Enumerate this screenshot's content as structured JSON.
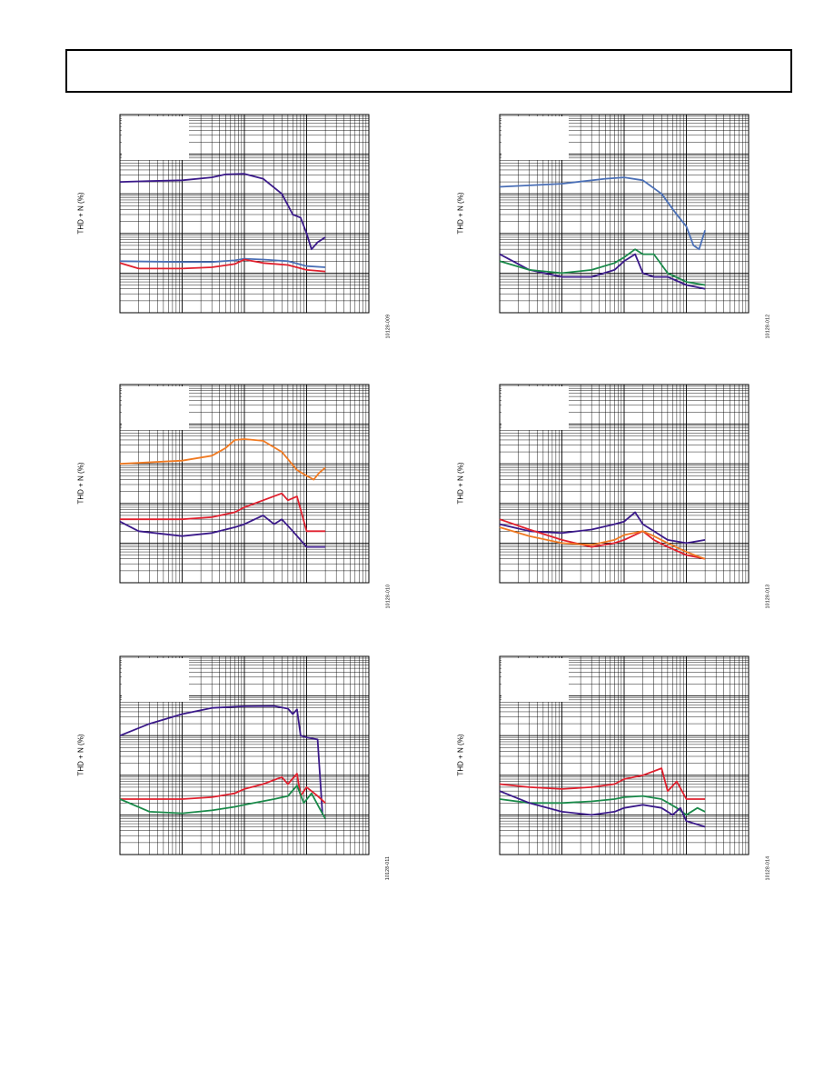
{
  "page": {
    "header_title": ""
  },
  "colors": {
    "purple": "#3b1a8a",
    "red": "#e0202e",
    "blue": "#4a6fb6",
    "green": "#1a8a4a",
    "orange": "#f07a22",
    "grid": "#000000"
  },
  "chart_data": [
    {
      "type": "line",
      "title": "",
      "xlabel": "",
      "ylabel": "THD + N (%)",
      "figure_code": "10128-009",
      "xscale": "log",
      "yscale": "log",
      "xlim": [
        0.001,
        10
      ],
      "ylim": [
        0.001,
        100
      ],
      "series": [
        {
          "color": "purple",
          "points": [
            [
              0.001,
              2
            ],
            [
              0.003,
              2.1
            ],
            [
              0.01,
              2.2
            ],
            [
              0.03,
              2.6
            ],
            [
              0.05,
              3.1
            ],
            [
              0.1,
              3.2
            ],
            [
              0.2,
              2.4
            ],
            [
              0.4,
              1.0
            ],
            [
              0.6,
              0.3
            ],
            [
              0.8,
              0.25
            ],
            [
              1.0,
              0.1
            ],
            [
              1.2,
              0.04
            ],
            [
              1.5,
              0.06
            ],
            [
              2.0,
              0.08
            ]
          ]
        },
        {
          "color": "blue",
          "points": [
            [
              0.001,
              0.02
            ],
            [
              0.01,
              0.019
            ],
            [
              0.03,
              0.019
            ],
            [
              0.07,
              0.021
            ],
            [
              0.1,
              0.023
            ],
            [
              0.2,
              0.022
            ],
            [
              0.5,
              0.02
            ],
            [
              1.0,
              0.015
            ],
            [
              2.0,
              0.014
            ]
          ]
        },
        {
          "color": "red",
          "points": [
            [
              0.001,
              0.018
            ],
            [
              0.002,
              0.013
            ],
            [
              0.01,
              0.013
            ],
            [
              0.03,
              0.014
            ],
            [
              0.07,
              0.017
            ],
            [
              0.1,
              0.022
            ],
            [
              0.2,
              0.018
            ],
            [
              0.5,
              0.016
            ],
            [
              1.0,
              0.012
            ],
            [
              2.0,
              0.011
            ]
          ]
        }
      ]
    },
    {
      "type": "line",
      "title": "",
      "xlabel": "",
      "ylabel": "THD + N (%)",
      "figure_code": "10128-012",
      "xscale": "log",
      "yscale": "log",
      "xlim": [
        0.001,
        10
      ],
      "ylim": [
        0.001,
        100
      ],
      "series": [
        {
          "color": "blue",
          "points": [
            [
              0.001,
              1.5
            ],
            [
              0.01,
              1.8
            ],
            [
              0.05,
              2.4
            ],
            [
              0.1,
              2.6
            ],
            [
              0.2,
              2.2
            ],
            [
              0.4,
              1.0
            ],
            [
              0.7,
              0.3
            ],
            [
              1.0,
              0.15
            ],
            [
              1.3,
              0.05
            ],
            [
              1.6,
              0.04
            ],
            [
              2.0,
              0.12
            ]
          ]
        },
        {
          "color": "purple",
          "points": [
            [
              0.001,
              0.03
            ],
            [
              0.003,
              0.012
            ],
            [
              0.01,
              0.008
            ],
            [
              0.03,
              0.008
            ],
            [
              0.07,
              0.012
            ],
            [
              0.1,
              0.02
            ],
            [
              0.15,
              0.03
            ],
            [
              0.2,
              0.01
            ],
            [
              0.3,
              0.008
            ],
            [
              0.5,
              0.008
            ],
            [
              1.0,
              0.005
            ],
            [
              2.0,
              0.004
            ]
          ]
        },
        {
          "color": "green",
          "points": [
            [
              0.001,
              0.02
            ],
            [
              0.003,
              0.012
            ],
            [
              0.01,
              0.01
            ],
            [
              0.03,
              0.012
            ],
            [
              0.07,
              0.018
            ],
            [
              0.1,
              0.025
            ],
            [
              0.15,
              0.04
            ],
            [
              0.2,
              0.03
            ],
            [
              0.3,
              0.03
            ],
            [
              0.5,
              0.01
            ],
            [
              1.0,
              0.006
            ],
            [
              2.0,
              0.005
            ]
          ]
        }
      ]
    },
    {
      "type": "line",
      "title": "",
      "xlabel": "",
      "ylabel": "THD + N (%)",
      "figure_code": "10128-010",
      "xscale": "log",
      "yscale": "log",
      "xlim": [
        0.001,
        10
      ],
      "ylim": [
        0.001,
        100
      ],
      "series": [
        {
          "color": "orange",
          "points": [
            [
              0.001,
              1.0
            ],
            [
              0.01,
              1.2
            ],
            [
              0.03,
              1.6
            ],
            [
              0.05,
              2.5
            ],
            [
              0.07,
              4.0
            ],
            [
              0.1,
              4.2
            ],
            [
              0.2,
              3.8
            ],
            [
              0.4,
              2.0
            ],
            [
              0.7,
              0.7
            ],
            [
              1.0,
              0.5
            ],
            [
              1.3,
              0.4
            ],
            [
              1.6,
              0.6
            ],
            [
              2.0,
              0.8
            ]
          ]
        },
        {
          "color": "red",
          "points": [
            [
              0.001,
              0.04
            ],
            [
              0.01,
              0.04
            ],
            [
              0.03,
              0.045
            ],
            [
              0.07,
              0.06
            ],
            [
              0.1,
              0.08
            ],
            [
              0.2,
              0.12
            ],
            [
              0.4,
              0.18
            ],
            [
              0.5,
              0.12
            ],
            [
              0.7,
              0.15
            ],
            [
              1.0,
              0.02
            ],
            [
              2.0,
              0.02
            ]
          ]
        },
        {
          "color": "purple",
          "points": [
            [
              0.001,
              0.035
            ],
            [
              0.002,
              0.02
            ],
            [
              0.01,
              0.015
            ],
            [
              0.03,
              0.018
            ],
            [
              0.07,
              0.025
            ],
            [
              0.1,
              0.03
            ],
            [
              0.2,
              0.05
            ],
            [
              0.3,
              0.03
            ],
            [
              0.4,
              0.04
            ],
            [
              0.6,
              0.02
            ],
            [
              1.0,
              0.008
            ],
            [
              2.0,
              0.008
            ]
          ]
        }
      ]
    },
    {
      "type": "line",
      "title": "",
      "xlabel": "",
      "ylabel": "THD + N (%)",
      "figure_code": "10128-013",
      "xscale": "log",
      "yscale": "log",
      "xlim": [
        0.001,
        10
      ],
      "ylim": [
        0.001,
        100
      ],
      "series": [
        {
          "color": "purple",
          "points": [
            [
              0.001,
              0.03
            ],
            [
              0.003,
              0.02
            ],
            [
              0.01,
              0.018
            ],
            [
              0.03,
              0.022
            ],
            [
              0.07,
              0.03
            ],
            [
              0.1,
              0.035
            ],
            [
              0.15,
              0.06
            ],
            [
              0.2,
              0.03
            ],
            [
              0.3,
              0.02
            ],
            [
              0.5,
              0.012
            ],
            [
              1.0,
              0.01
            ],
            [
              2.0,
              0.012
            ]
          ]
        },
        {
          "color": "red",
          "points": [
            [
              0.001,
              0.04
            ],
            [
              0.003,
              0.022
            ],
            [
              0.01,
              0.012
            ],
            [
              0.03,
              0.008
            ],
            [
              0.07,
              0.01
            ],
            [
              0.1,
              0.012
            ],
            [
              0.2,
              0.02
            ],
            [
              0.3,
              0.012
            ],
            [
              0.5,
              0.008
            ],
            [
              1.0,
              0.005
            ],
            [
              2.0,
              0.004
            ]
          ]
        },
        {
          "color": "orange",
          "points": [
            [
              0.001,
              0.025
            ],
            [
              0.003,
              0.015
            ],
            [
              0.01,
              0.01
            ],
            [
              0.03,
              0.009
            ],
            [
              0.07,
              0.012
            ],
            [
              0.1,
              0.016
            ],
            [
              0.2,
              0.02
            ],
            [
              0.3,
              0.015
            ],
            [
              0.5,
              0.01
            ],
            [
              1.0,
              0.006
            ],
            [
              2.0,
              0.004
            ]
          ]
        }
      ]
    },
    {
      "type": "line",
      "title": "",
      "xlabel": "",
      "ylabel": "THD + N (%)",
      "figure_code": "10128-011",
      "xscale": "log",
      "yscale": "log",
      "xlim": [
        0.001,
        10
      ],
      "ylim": [
        0.001,
        100
      ],
      "series": [
        {
          "color": "purple",
          "points": [
            [
              0.001,
              1.0
            ],
            [
              0.003,
              2.0
            ],
            [
              0.01,
              3.5
            ],
            [
              0.03,
              5.0
            ],
            [
              0.1,
              5.5
            ],
            [
              0.3,
              5.6
            ],
            [
              0.5,
              4.8
            ],
            [
              0.6,
              3.5
            ],
            [
              0.7,
              4.6
            ],
            [
              0.8,
              1.0
            ],
            [
              1.0,
              0.9
            ],
            [
              1.5,
              0.8
            ],
            [
              1.8,
              0.01
            ]
          ]
        },
        {
          "color": "red",
          "points": [
            [
              0.001,
              0.025
            ],
            [
              0.01,
              0.025
            ],
            [
              0.03,
              0.028
            ],
            [
              0.07,
              0.035
            ],
            [
              0.1,
              0.045
            ],
            [
              0.2,
              0.06
            ],
            [
              0.4,
              0.09
            ],
            [
              0.5,
              0.06
            ],
            [
              0.7,
              0.11
            ],
            [
              0.8,
              0.03
            ],
            [
              1.0,
              0.05
            ],
            [
              1.5,
              0.03
            ],
            [
              2.0,
              0.02
            ]
          ]
        },
        {
          "color": "green",
          "points": [
            [
              0.001,
              0.025
            ],
            [
              0.003,
              0.012
            ],
            [
              0.01,
              0.011
            ],
            [
              0.03,
              0.013
            ],
            [
              0.07,
              0.016
            ],
            [
              0.1,
              0.018
            ],
            [
              0.3,
              0.025
            ],
            [
              0.5,
              0.03
            ],
            [
              0.7,
              0.055
            ],
            [
              0.9,
              0.02
            ],
            [
              1.2,
              0.035
            ],
            [
              1.6,
              0.015
            ],
            [
              2.0,
              0.008
            ]
          ]
        }
      ]
    },
    {
      "type": "line",
      "title": "",
      "xlabel": "",
      "ylabel": "THD + N (%)",
      "figure_code": "10128-014",
      "xscale": "log",
      "yscale": "log",
      "xlim": [
        0.001,
        10
      ],
      "ylim": [
        0.001,
        100
      ],
      "series": [
        {
          "color": "red",
          "points": [
            [
              0.001,
              0.06
            ],
            [
              0.003,
              0.05
            ],
            [
              0.01,
              0.045
            ],
            [
              0.03,
              0.05
            ],
            [
              0.07,
              0.06
            ],
            [
              0.1,
              0.08
            ],
            [
              0.2,
              0.1
            ],
            [
              0.4,
              0.15
            ],
            [
              0.5,
              0.04
            ],
            [
              0.7,
              0.07
            ],
            [
              1.0,
              0.025
            ],
            [
              2.0,
              0.025
            ]
          ]
        },
        {
          "color": "green",
          "points": [
            [
              0.001,
              0.025
            ],
            [
              0.003,
              0.02
            ],
            [
              0.01,
              0.02
            ],
            [
              0.03,
              0.022
            ],
            [
              0.07,
              0.025
            ],
            [
              0.1,
              0.028
            ],
            [
              0.2,
              0.03
            ],
            [
              0.4,
              0.025
            ],
            [
              0.7,
              0.015
            ],
            [
              1.0,
              0.01
            ],
            [
              1.5,
              0.015
            ],
            [
              2.0,
              0.012
            ]
          ]
        },
        {
          "color": "purple",
          "points": [
            [
              0.001,
              0.04
            ],
            [
              0.003,
              0.02
            ],
            [
              0.01,
              0.012
            ],
            [
              0.03,
              0.01
            ],
            [
              0.07,
              0.012
            ],
            [
              0.1,
              0.015
            ],
            [
              0.2,
              0.018
            ],
            [
              0.4,
              0.015
            ],
            [
              0.6,
              0.01
            ],
            [
              0.8,
              0.015
            ],
            [
              1.0,
              0.007
            ],
            [
              2.0,
              0.005
            ]
          ]
        }
      ]
    }
  ]
}
